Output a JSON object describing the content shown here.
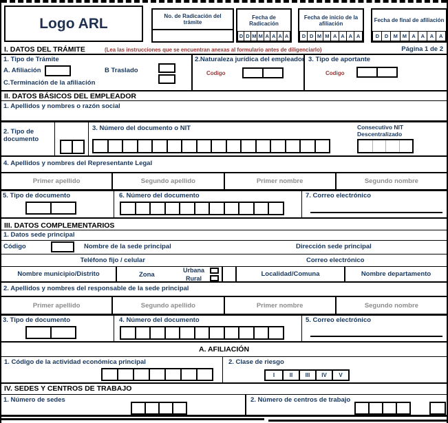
{
  "header": {
    "logo": "Logo ARL",
    "radicacion_no_label": "No. de Radicación del trámite",
    "fecha_radicacion_label": "Fecha de Radicación",
    "fecha_inicio_label": "Fecha de inicio de la afiliación",
    "fecha_final_label": "Fecha de final de afiliación"
  },
  "names": [
    "Primer apellido",
    "Segundo apellido",
    "Primer nombre",
    "Segundo nombre"
  ],
  "section1": {
    "title": "I. DATOS DEL TRÁMITE",
    "instructions": "(Lea las instrucciones que se encuentran anexas al formulario antes de diligenciarlo)",
    "page": "Página 1 de 2",
    "tramite_label": "1. Tipo de Trámite",
    "option_a": "A. Afiliación",
    "option_b": "B  Traslado",
    "option_c": "C.Terminación de la afiliación",
    "naturaleza_label": "2.Naturaleza jurídica del empleador",
    "naturaleza_codigo": "Codigo",
    "aportante_label": "3. Tipo de aportante",
    "aportante_codigo": "Codigo"
  },
  "section2": {
    "title": "II. DATOS BÁSICOS DEL EMPLEADOR",
    "razon_social": "1. Apellidos y nombres o razón social",
    "tipo_documento": "2. Tipo de documento",
    "numero_documento": "3. Número del documento o NIT",
    "consecutivo_line1": "Consecutivo NIT",
    "consecutivo_line2": "Descentralizado",
    "representante": "4. Apellidos y nombres  del Representante Legal",
    "tipo_documento_rep": "5. Tipo de documento",
    "numero_documento_rep": "6. Número del documento",
    "correo_rep": "7. Correo electrónico"
  },
  "section3": {
    "title": "III. DATOS COMPLEMENTARIOS",
    "sede_label": "1. Datos sede principal",
    "codigo": "Código",
    "nombre_sede": "Nombre de la sede principal",
    "direccion_sede": "Dirección sede principal",
    "telefono": "Teléfono fijo / celular",
    "correo": "Correo electrónico",
    "municipio": "Nombre municipio/Distrito",
    "zona": "Zona",
    "urbana": "Urbana",
    "rural": "Rural",
    "localidad": "Localidad/Comuna",
    "departamento": "Nombre departamento",
    "responsable_label": "2. Apellidos y nombres  del responsable de la sede principal",
    "tipo_documento_resp": "3. Tipo de documento",
    "numero_documento_resp": "4. Número del documento",
    "correo_resp": "5. Correo electrónico"
  },
  "afiliacion": {
    "title": "A. AFILIACIÓN",
    "actividad": "1. Código de la actividad económica principal",
    "clase_riesgo": "2. Clase de riesgo"
  },
  "section4": {
    "title": "IV. SEDES Y CENTROS DE TRABAJO",
    "num_sedes": "1. Número de sedes",
    "num_centros": "2. Número de centros de trabajo"
  },
  "cells": {
    "date": [
      "D",
      "D",
      "M",
      "M",
      "A",
      "A",
      "A",
      "A"
    ],
    "codigo2": 2,
    "tipo_doc2": 2,
    "nit16": 16,
    "consecutivo4": 4,
    "documento11": 11,
    "actividad7": 7,
    "riesgo": [
      "I",
      "II",
      "III",
      "IV",
      "V"
    ],
    "sedes4": 4,
    "centros4": 4
  },
  "colors": {
    "label_navy": "#17365d",
    "accent_maroon": "#943634",
    "placeholder_gray": "#8c8c8c"
  }
}
